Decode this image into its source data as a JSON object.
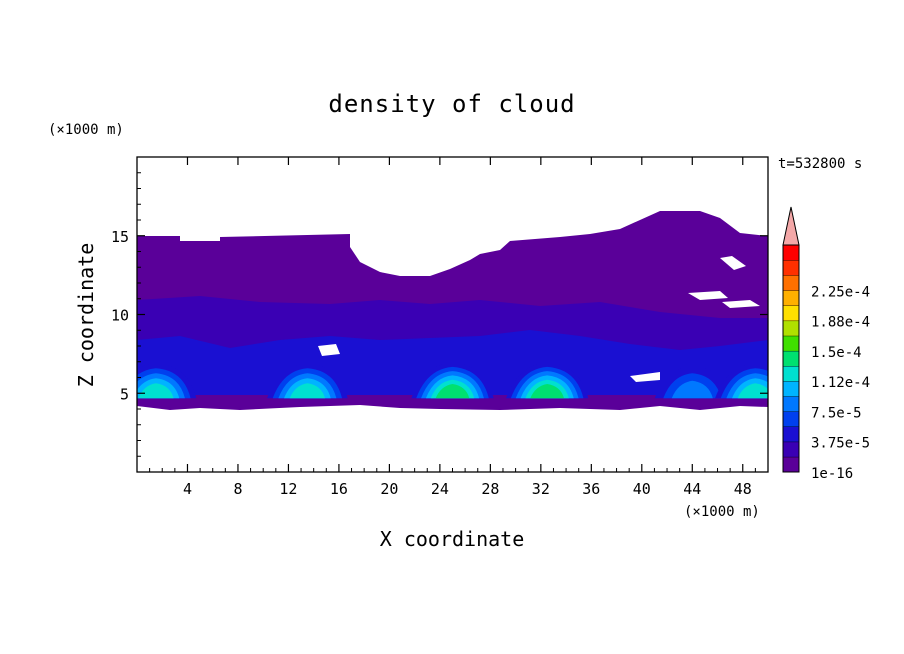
{
  "chart_data": {
    "type": "heatmap",
    "title": "density of cloud",
    "xlabel": "X coordinate",
    "ylabel": "Z coordinate",
    "x_unit": "(×1000 m)",
    "y_unit": "(×1000 m)",
    "time_label": "t=532800 s",
    "xlim": [
      0,
      50
    ],
    "ylim": [
      0,
      20
    ],
    "x_ticks": [
      4,
      8,
      12,
      16,
      20,
      24,
      28,
      32,
      36,
      40,
      44,
      48
    ],
    "y_ticks": [
      5,
      10,
      15
    ],
    "colorbar": {
      "levels": [
        "1e-16",
        "3.75e-5",
        "7.5e-5",
        "1.12e-4",
        "1.5e-4",
        "1.88e-4",
        "2.25e-4"
      ],
      "colors": [
        "#5a0099",
        "#3a00b4",
        "#1a10d2",
        "#0040ee",
        "#0078ff",
        "#00b4ff",
        "#00e0d0",
        "#00e070",
        "#40e000",
        "#b0e000",
        "#ffe000",
        "#ffb000",
        "#ff7000",
        "#ff3000",
        "#ff0000"
      ],
      "extend_color": "#f4a8a8"
    },
    "cloud_layer": {
      "base_km": 4.3,
      "top_km": 15.0,
      "core_km": [
        5.0,
        6.6
      ]
    },
    "updraft_cores": [
      {
        "x_km": 1.5,
        "peak": "1.12e-4"
      },
      {
        "x_km": 13.5,
        "peak": "1.12e-4"
      },
      {
        "x_km": 25.0,
        "peak": "1.5e-4"
      },
      {
        "x_km": 32.5,
        "peak": "1.5e-4"
      },
      {
        "x_km": 44.0,
        "peak": "7.5e-5"
      },
      {
        "x_km": 49.0,
        "peak": "1.12e-4"
      }
    ]
  }
}
